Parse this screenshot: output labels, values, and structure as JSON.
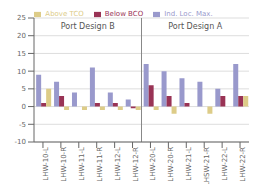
{
  "chart_data": {
    "type": "bar",
    "categories": [
      "LHW-10-L",
      "LHW-10-R",
      "LHW-11-L",
      "LHW-11-R",
      "LHW-12-L",
      "LHW-12-R",
      "LHW-20-L",
      "LHW-20-R",
      "LHW-21-L",
      "LHSW-21-R",
      "LHW-22-L",
      "LHW-22-R"
    ],
    "series": [
      {
        "name": "Ind. Loc. Max.",
        "color": "#9999CC",
        "values": [
          9,
          7,
          4,
          11,
          4,
          2,
          12,
          10,
          8,
          7,
          5,
          12
        ]
      },
      {
        "name": "Below BCO",
        "color": "#993355",
        "values": [
          1,
          3,
          0,
          1,
          1,
          -0.5,
          6,
          3,
          1,
          0,
          3,
          3
        ]
      },
      {
        "name": "Above TCO",
        "color": "#DDCC88",
        "values": [
          5,
          -1,
          -1,
          -1,
          -1,
          -1,
          -1,
          -2,
          0,
          -2,
          0,
          3
        ]
      }
    ],
    "ylim": [
      -10,
      25
    ],
    "yticks": [
      -10,
      -5,
      0,
      5,
      10,
      15,
      20,
      25
    ],
    "grid": true,
    "legend": "top",
    "annotations": [
      "Port Design B",
      "Port Design A"
    ]
  }
}
